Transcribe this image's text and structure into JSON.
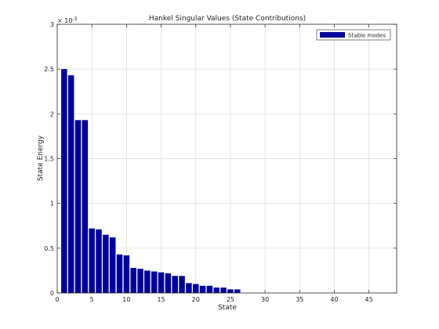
{
  "chart_data": {
    "type": "bar",
    "title": "Hankel Singular Values (State Contributions)",
    "xlabel": "State",
    "ylabel": "State Energy",
    "y_exponent_label": "× 10",
    "y_exponent_power": "-3",
    "y_scale_factor": 0.001,
    "xlim": [
      0,
      49
    ],
    "ylim": [
      0,
      0.003
    ],
    "grid": true,
    "legend_placement": "top-right",
    "bar_color": "#00009C",
    "x_ticks": [
      0,
      5,
      10,
      15,
      20,
      25,
      30,
      35,
      40,
      45
    ],
    "x_tick_labels": [
      "0",
      "5",
      "10",
      "15",
      "20",
      "25",
      "30",
      "35",
      "40",
      "45"
    ],
    "y_ticks": [
      0,
      0.0005,
      0.001,
      0.0015,
      0.002,
      0.0025,
      0.003
    ],
    "y_tick_labels": [
      "0",
      "0.5",
      "1",
      "1.5",
      "2",
      "2.5",
      "3"
    ],
    "series": [
      {
        "name": "Stable modes",
        "color": "#00009C",
        "x": [
          1,
          2,
          3,
          4,
          5,
          6,
          7,
          8,
          9,
          10,
          11,
          12,
          13,
          14,
          15,
          16,
          17,
          18,
          19,
          20,
          21,
          22,
          23,
          24,
          25,
          26
        ],
        "values": [
          0.0025,
          0.00243,
          0.00193,
          0.00193,
          0.00072,
          0.00071,
          0.00065,
          0.00062,
          0.00043,
          0.00042,
          0.00028,
          0.00027,
          0.00025,
          0.00024,
          0.00023,
          0.00022,
          0.00019,
          0.00019,
          0.00011,
          0.0001,
          8e-05,
          8e-05,
          6e-05,
          6e-05,
          4e-05,
          4e-05
        ]
      }
    ]
  }
}
